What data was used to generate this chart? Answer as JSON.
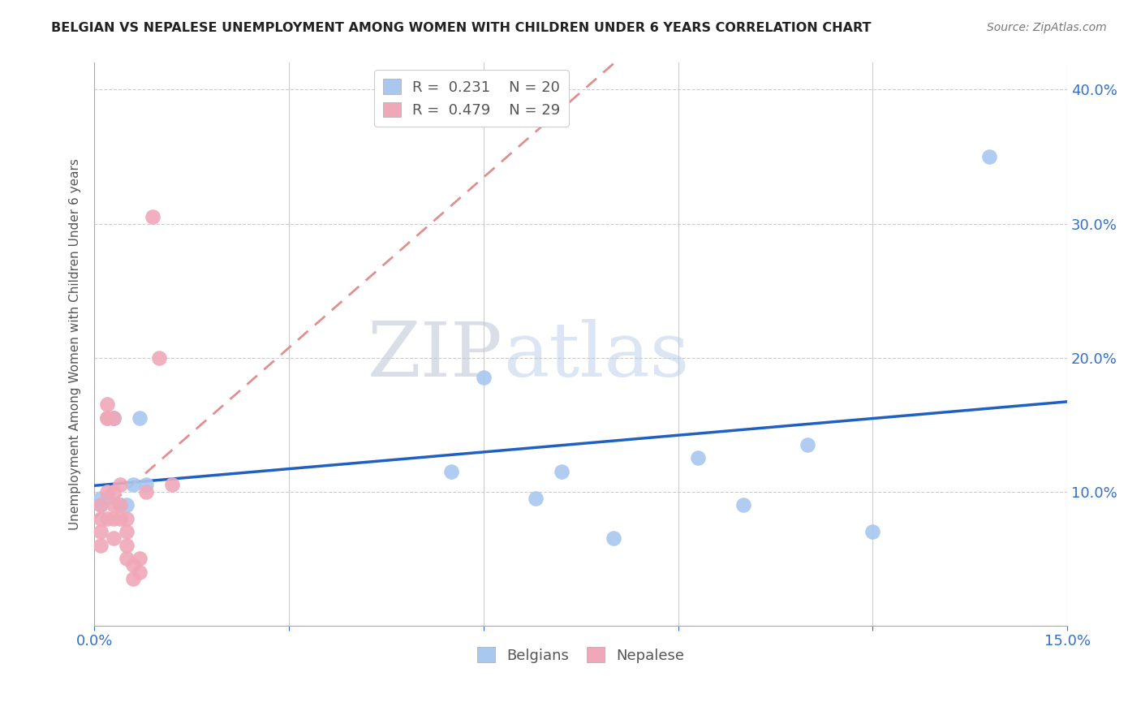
{
  "title": "BELGIAN VS NEPALESE UNEMPLOYMENT AMONG WOMEN WITH CHILDREN UNDER 6 YEARS CORRELATION CHART",
  "source": "Source: ZipAtlas.com",
  "ylabel": "Unemployment Among Women with Children Under 6 years",
  "watermark_zip": "ZIP",
  "watermark_atlas": "atlas",
  "belgians_R": 0.231,
  "belgians_N": 20,
  "nepalese_R": 0.479,
  "nepalese_N": 29,
  "belgian_color": "#A8C8F0",
  "nepalese_color": "#F0A8B8",
  "trend_belgian_color": "#2060C0",
  "trend_nepalese_color": "#E09090",
  "xlim": [
    0.0,
    0.15
  ],
  "ylim": [
    0.0,
    0.42
  ],
  "yticks": [
    0.0,
    0.1,
    0.2,
    0.3,
    0.4
  ],
  "ytick_labels": [
    "",
    "10.0%",
    "20.0%",
    "30.0%",
    "40.0%"
  ],
  "xticks": [
    0.0,
    0.03,
    0.06,
    0.09,
    0.12,
    0.15
  ],
  "xtick_labels": [
    "0.0%",
    "",
    "",
    "",
    "",
    "15.0%"
  ],
  "belgians_x": [
    0.001,
    0.001,
    0.002,
    0.003,
    0.003,
    0.004,
    0.005,
    0.006,
    0.007,
    0.008,
    0.055,
    0.06,
    0.068,
    0.072,
    0.08,
    0.093,
    0.1,
    0.11,
    0.12,
    0.138
  ],
  "belgians_y": [
    0.095,
    0.09,
    0.095,
    0.155,
    0.155,
    0.09,
    0.09,
    0.105,
    0.155,
    0.105,
    0.115,
    0.185,
    0.095,
    0.115,
    0.065,
    0.125,
    0.09,
    0.135,
    0.07,
    0.35
  ],
  "nepalese_x": [
    0.001,
    0.001,
    0.001,
    0.001,
    0.002,
    0.002,
    0.002,
    0.002,
    0.002,
    0.003,
    0.003,
    0.003,
    0.003,
    0.003,
    0.004,
    0.004,
    0.004,
    0.005,
    0.005,
    0.005,
    0.005,
    0.006,
    0.006,
    0.007,
    0.007,
    0.008,
    0.009,
    0.01,
    0.012
  ],
  "nepalese_y": [
    0.09,
    0.08,
    0.07,
    0.06,
    0.165,
    0.155,
    0.155,
    0.1,
    0.08,
    0.155,
    0.1,
    0.09,
    0.08,
    0.065,
    0.105,
    0.09,
    0.08,
    0.08,
    0.07,
    0.06,
    0.05,
    0.045,
    0.035,
    0.05,
    0.04,
    0.1,
    0.305,
    0.2,
    0.105
  ]
}
